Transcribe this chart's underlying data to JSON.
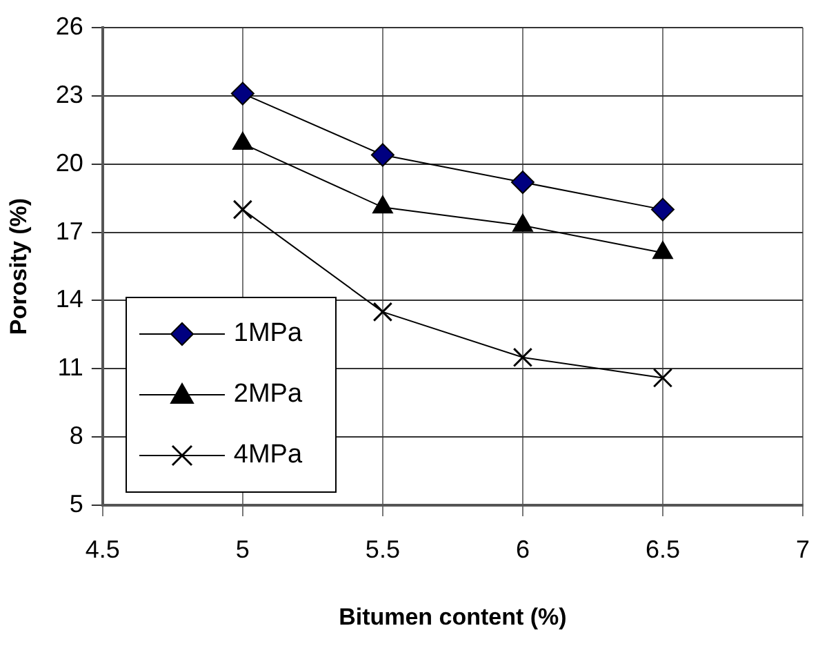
{
  "chart_data": {
    "type": "line",
    "xlabel": "Bitumen content (%)",
    "ylabel": "Porosity (%)",
    "x": [
      5,
      5.5,
      6,
      6.5
    ],
    "series": [
      {
        "name": "1MPa",
        "color": "#000080",
        "marker": "diamond",
        "values": [
          23.1,
          20.4,
          19.2,
          18.0
        ]
      },
      {
        "name": "2MPa",
        "color": "#000000",
        "marker": "triangle",
        "values": [
          20.9,
          18.1,
          17.3,
          16.1
        ]
      },
      {
        "name": "4MPa",
        "color": "#000000",
        "marker": "cross",
        "values": [
          18.0,
          13.5,
          11.5,
          10.6
        ]
      }
    ],
    "xlim": [
      4.5,
      7
    ],
    "xticks": [
      4.5,
      5,
      5.5,
      6,
      6.5,
      7
    ],
    "ylim": [
      5,
      26
    ],
    "yticks": [
      5,
      8,
      11,
      14,
      17,
      20,
      23,
      26
    ],
    "grid": true,
    "legend": "bottom left",
    "line_style": "solid"
  }
}
